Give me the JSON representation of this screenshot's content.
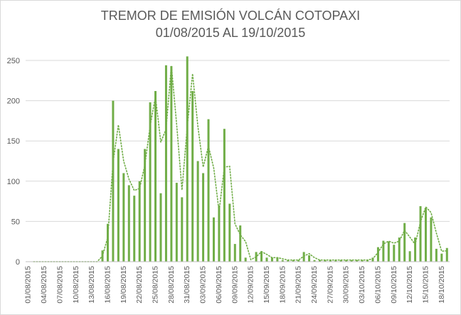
{
  "chart_data": {
    "type": "bar",
    "title": "TREMOR DE EMISIÓN VOLCÁN COTOPAXI",
    "subtitle": "01/08/2015 AL 19/10/2015",
    "xlabel": "",
    "ylabel": "",
    "ylim": [
      0,
      250
    ],
    "yticks": [
      0,
      50,
      100,
      150,
      200,
      250
    ],
    "grid": true,
    "categories": [
      "01/08/2015",
      "02/08/2015",
      "03/08/2015",
      "04/08/2015",
      "05/08/2015",
      "06/08/2015",
      "07/08/2015",
      "08/08/2015",
      "09/08/2015",
      "10/08/2015",
      "11/08/2015",
      "12/08/2015",
      "13/08/2015",
      "14/08/2015",
      "15/08/2015",
      "16/08/2015",
      "17/08/2015",
      "18/08/2015",
      "19/08/2015",
      "20/08/2015",
      "21/08/2015",
      "22/08/2015",
      "23/08/2015",
      "24/08/2015",
      "25/08/2015",
      "26/08/2015",
      "27/08/2015",
      "28/08/2015",
      "29/08/2015",
      "30/08/2015",
      "31/08/2015",
      "01/09/2015",
      "02/09/2015",
      "03/09/2015",
      "04/09/2015",
      "05/09/2015",
      "06/09/2015",
      "07/09/2015",
      "08/09/2015",
      "09/09/2015",
      "10/09/2015",
      "11/09/2015",
      "12/09/2015",
      "13/09/2015",
      "14/09/2015",
      "15/09/2015",
      "16/09/2015",
      "17/09/2015",
      "18/09/2015",
      "19/09/2015",
      "20/09/2015",
      "21/09/2015",
      "22/09/2015",
      "23/09/2015",
      "24/09/2015",
      "25/09/2015",
      "26/09/2015",
      "27/09/2015",
      "28/09/2015",
      "29/09/2015",
      "30/09/2015",
      "01/10/2015",
      "02/10/2015",
      "03/10/2015",
      "04/10/2015",
      "05/10/2015",
      "06/10/2015",
      "07/10/2015",
      "08/10/2015",
      "09/10/2015",
      "10/10/2015",
      "11/10/2015",
      "12/10/2015",
      "13/10/2015",
      "14/10/2015",
      "15/10/2015",
      "16/10/2015",
      "17/10/2015",
      "18/10/2015",
      "19/10/2015"
    ],
    "x_tick_labels": [
      "01/08/2015",
      "04/08/2015",
      "07/08/2015",
      "10/08/2015",
      "13/08/2015",
      "16/08/2015",
      "19/08/2015",
      "22/08/2015",
      "25/08/2015",
      "28/08/2015",
      "31/08/2015",
      "03/09/2015",
      "06/09/2015",
      "09/09/2015",
      "12/09/2015",
      "15/09/2015",
      "18/09/2015",
      "21/09/2015",
      "24/09/2015",
      "27/09/2015",
      "30/09/2015",
      "03/10/2015",
      "06/10/2015",
      "09/10/2015",
      "12/10/2015",
      "15/10/2015",
      "18/10/2015"
    ],
    "series": [
      {
        "color": "#70ad47",
        "values": [
          0,
          0,
          0,
          0,
          0,
          0,
          0,
          0,
          0,
          0,
          0,
          0,
          0,
          0,
          14,
          47,
          200,
          140,
          110,
          95,
          82,
          100,
          140,
          198,
          212,
          85,
          244,
          243,
          98,
          80,
          255,
          212,
          125,
          110,
          177,
          55,
          70,
          165,
          72,
          22,
          45,
          5,
          0,
          12,
          13,
          5,
          5,
          5,
          2,
          2,
          2,
          2,
          12,
          8,
          2,
          2,
          2,
          2,
          2,
          2,
          2,
          2,
          2,
          2,
          2,
          5,
          18,
          26,
          25,
          21,
          30,
          48,
          13,
          30,
          69,
          67,
          55,
          16,
          10,
          17
        ]
      }
    ],
    "trendline": {
      "type": "moving-average",
      "style": "dotted",
      "color": "#70ad47"
    }
  }
}
